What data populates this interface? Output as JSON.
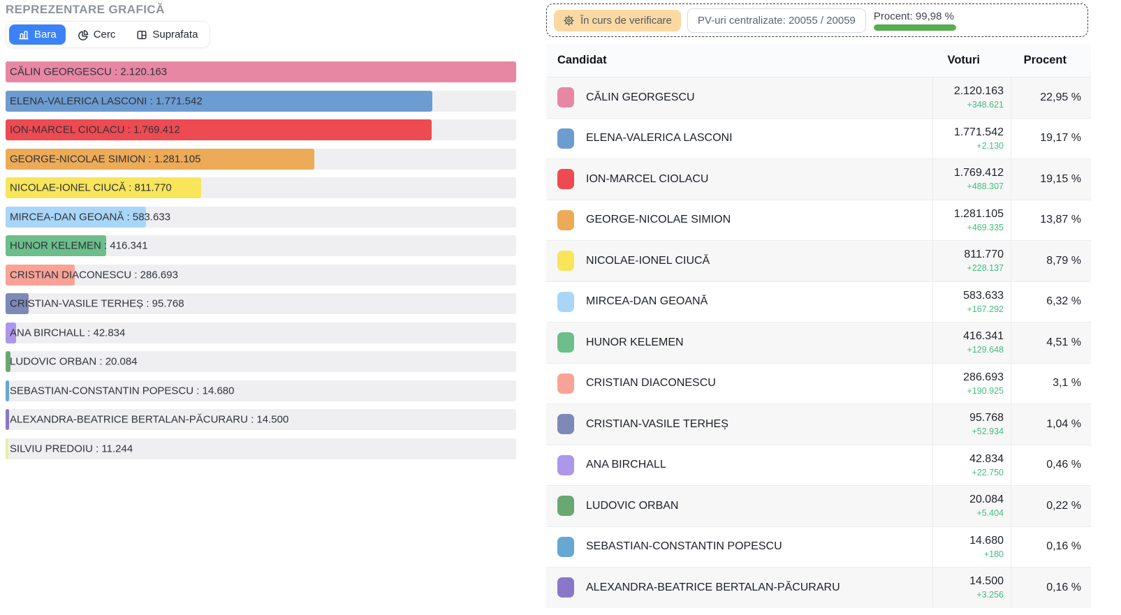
{
  "chart_panel": {
    "title": "REPREZENTARE GRAFICĂ",
    "tabs": [
      {
        "label": "Bara",
        "icon": "bar-chart-icon",
        "active": true
      },
      {
        "label": "Cerc",
        "icon": "pie-chart-icon",
        "active": false
      },
      {
        "label": "Suprafata",
        "icon": "area-grid-icon",
        "active": false
      }
    ],
    "active_tab_color": "#3b82f6"
  },
  "status_bar": {
    "verification_badge": {
      "label": "În curs de verificare",
      "icon": "gear-alert-icon",
      "bg_color": "#fcd9a2"
    },
    "pv_counter": {
      "label": "PV-uri centralizate: 20055 / 20059"
    },
    "progress": {
      "label": "Procent: 99,98 %",
      "value_percent": 99.98,
      "bar_color": "#55ad4f"
    }
  },
  "table": {
    "headers": {
      "candidate": "Candidat",
      "votes": "Voturi",
      "percent": "Procent"
    },
    "rows": [
      {
        "name": "CĂLIN GEORGESCU",
        "votes": "2.120.163",
        "delta": "+348.621",
        "percent": "22,95 %",
        "color": "#e887a3"
      },
      {
        "name": "ELENA-VALERICA LASCONI",
        "votes": "1.771.542",
        "delta": "+2.130",
        "percent": "19,17 %",
        "color": "#6d9cd1"
      },
      {
        "name": "ION-MARCEL CIOLACU",
        "votes": "1.769.412",
        "delta": "+488.307",
        "percent": "19,15 %",
        "color": "#ee4a52"
      },
      {
        "name": "GEORGE-NICOLAE SIMION",
        "votes": "1.281.105",
        "delta": "+469.335",
        "percent": "13,87 %",
        "color": "#edaa57"
      },
      {
        "name": "NICOLAE-IONEL CIUCĂ",
        "votes": "811.770",
        "delta": "+228.137",
        "percent": "8,79 %",
        "color": "#f8e55a"
      },
      {
        "name": "MIRCEA-DAN GEOANĂ",
        "votes": "583.633",
        "delta": "+167.292",
        "percent": "6,32 %",
        "color": "#a9d6f7"
      },
      {
        "name": "HUNOR KELEMEN",
        "votes": "416.341",
        "delta": "+129.648",
        "percent": "4,51 %",
        "color": "#6cbe8a"
      },
      {
        "name": "CRISTIAN DIACONESCU",
        "votes": "286.693",
        "delta": "+190.925",
        "percent": "3,1 %",
        "color": "#f8a396"
      },
      {
        "name": "CRISTIAN-VASILE TERHEȘ",
        "votes": "95.768",
        "delta": "+52.934",
        "percent": "1,04 %",
        "color": "#7d89b6"
      },
      {
        "name": "ANA BIRCHALL",
        "votes": "42.834",
        "delta": "+22.750",
        "percent": "0,46 %",
        "color": "#ad97ea"
      },
      {
        "name": "LUDOVIC ORBAN",
        "votes": "20.084",
        "delta": "+5.404",
        "percent": "0,22 %",
        "color": "#6aa872"
      },
      {
        "name": "SEBASTIAN-CONSTANTIN POPESCU",
        "votes": "14.680",
        "delta": "+180",
        "percent": "0,16 %",
        "color": "#64a8d3"
      },
      {
        "name": "ALEXANDRA-BEATRICE BERTALAN-PĂCURARU",
        "votes": "14.500",
        "delta": "+3.256",
        "percent": "0,16 %",
        "color": "#8a77c9"
      }
    ]
  },
  "chart_data": {
    "type": "bar",
    "orientation": "horizontal",
    "title": "REPREZENTARE GRAFICĂ",
    "categories": [
      "CĂLIN GEORGESCU",
      "ELENA-VALERICA LASCONI",
      "ION-MARCEL CIOLACU",
      "GEORGE-NICOLAE SIMION",
      "NICOLAE-IONEL CIUCĂ",
      "MIRCEA-DAN GEOANĂ",
      "HUNOR KELEMEN",
      "CRISTIAN DIACONESCU",
      "CRISTIAN-VASILE TERHEȘ",
      "ANA BIRCHALL",
      "LUDOVIC ORBAN",
      "SEBASTIAN-CONSTANTIN POPESCU",
      "ALEXANDRA-BEATRICE BERTALAN-PĂCURARU",
      "SILVIU PREDOIU"
    ],
    "values": [
      2120163,
      1771542,
      1769412,
      1281105,
      811770,
      583633,
      416341,
      286693,
      95768,
      42834,
      20084,
      14680,
      14500,
      11244
    ],
    "values_display": [
      "2.120.163",
      "1.771.542",
      "1.769.412",
      "1.281.105",
      "811.770",
      "583.633",
      "416.341",
      "286.693",
      "95.768",
      "42.834",
      "20.084",
      "14.680",
      "14.500",
      "11.244"
    ],
    "colors": [
      "#e887a3",
      "#6d9cd1",
      "#ee4a52",
      "#edaa57",
      "#f8e55a",
      "#a9d6f7",
      "#6cbe8a",
      "#f8a396",
      "#7d89b6",
      "#ad97ea",
      "#6aa872",
      "#64a8d3",
      "#8a77c9",
      "#e9eda3"
    ],
    "percent_of_max": [
      100,
      83.56,
      83.46,
      60.42,
      38.29,
      27.53,
      19.64,
      13.52,
      4.52,
      2.02,
      0.95,
      0.69,
      0.68,
      0.53
    ],
    "xlim": [
      0,
      2120163
    ],
    "label_separator": " : ",
    "track_color": "#efeff1",
    "grid": false,
    "legend": false
  }
}
